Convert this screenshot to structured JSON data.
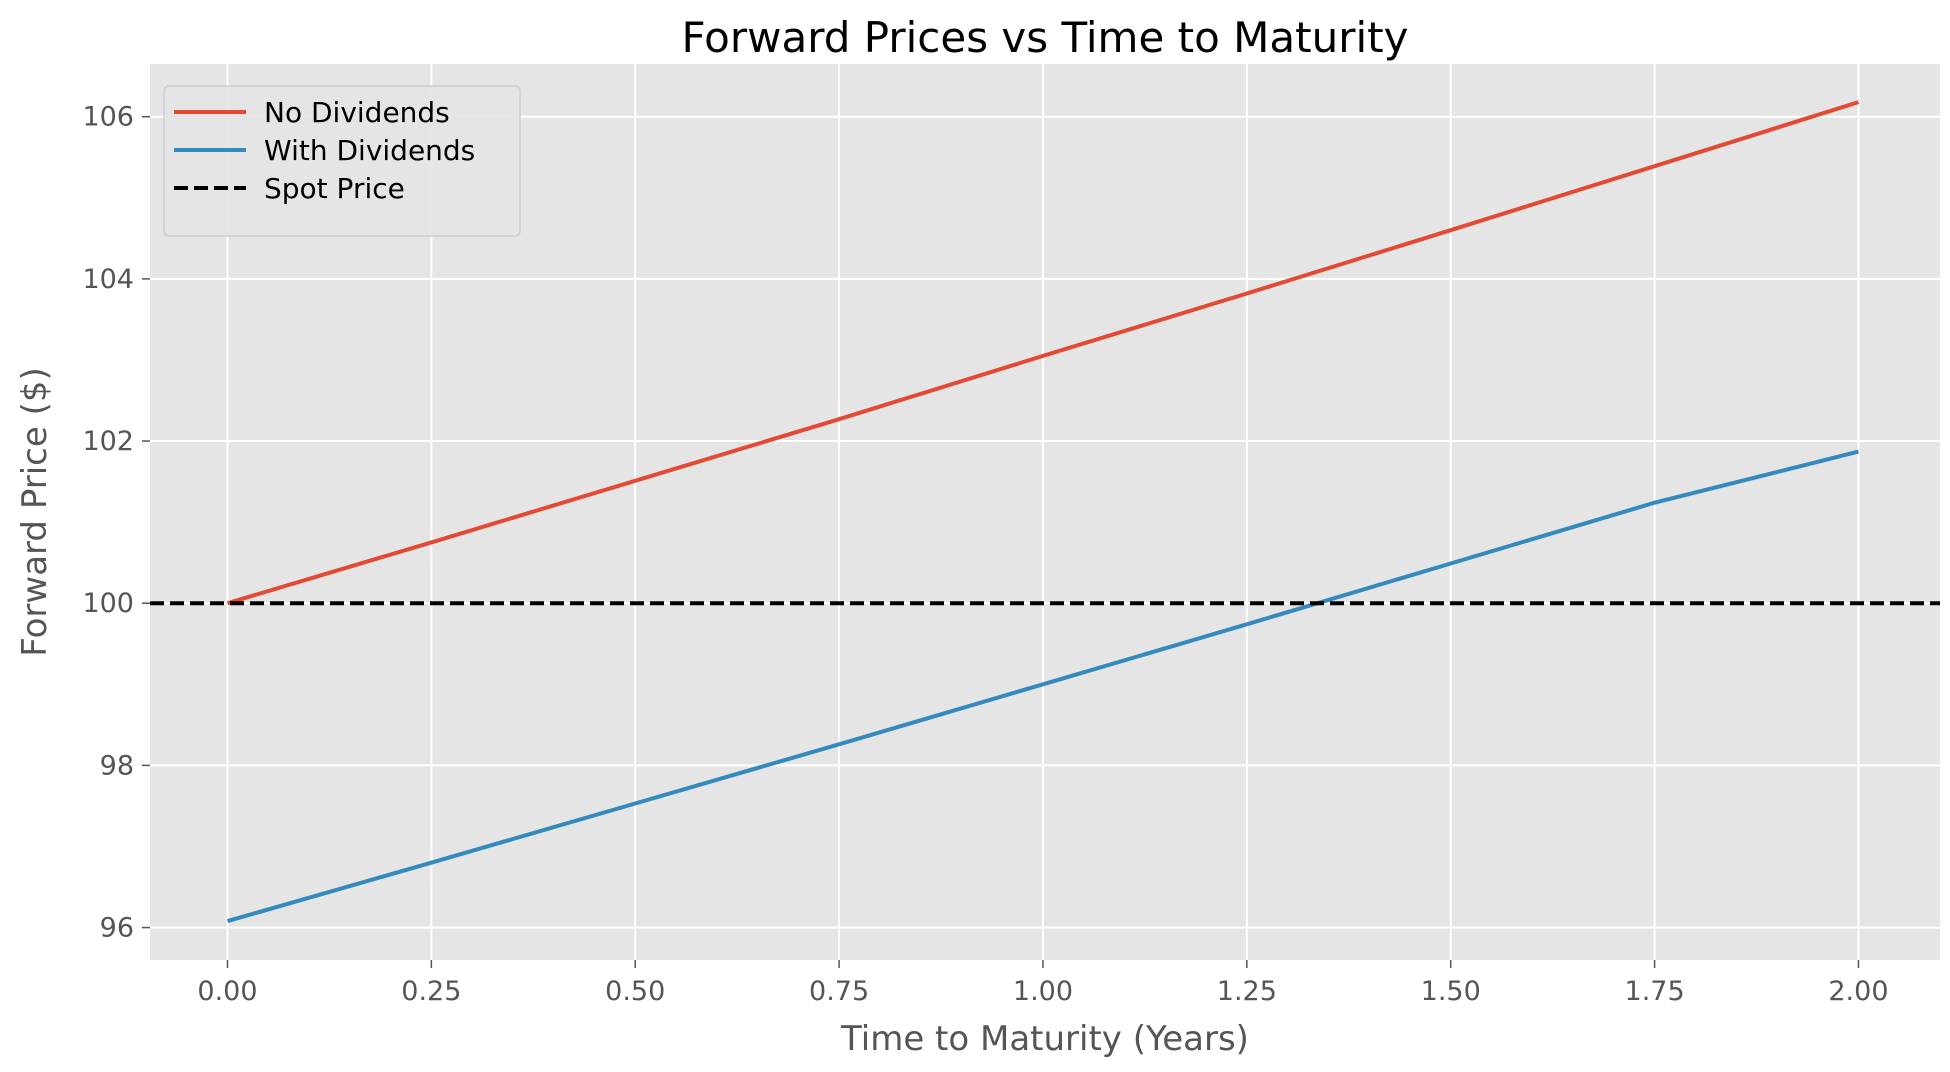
{
  "chart_data": {
    "type": "line",
    "title": "Forward Prices vs Time to Maturity",
    "xlabel": "Time to Maturity (Years)",
    "ylabel": "Forward Price ($)",
    "xlim": [
      -0.095,
      2.1
    ],
    "ylim": [
      95.6,
      106.65
    ],
    "x_ticks": [
      0,
      0.25,
      0.5,
      0.75,
      1.0,
      1.25,
      1.5,
      1.75,
      2.0
    ],
    "x_tick_labels": [
      "0.00",
      "0.25",
      "0.50",
      "0.75",
      "1.00",
      "1.25",
      "1.50",
      "1.75",
      "2.00"
    ],
    "y_ticks": [
      96,
      98,
      100,
      102,
      104,
      106
    ],
    "y_tick_labels": [
      "96",
      "98",
      "100",
      "102",
      "104",
      "106"
    ],
    "grid": true,
    "legend_position": "top-left",
    "series": [
      {
        "name": "No Dividends",
        "color": "#E24A33",
        "dash": "solid",
        "x": [
          0,
          0.25,
          0.5,
          0.75,
          1.0,
          1.25,
          1.5,
          1.75,
          2.0
        ],
        "y": [
          100.0,
          100.75,
          101.51,
          102.27,
          103.05,
          103.82,
          104.6,
          105.39,
          106.18
        ]
      },
      {
        "name": "With Dividends",
        "color": "#348ABD",
        "dash": "solid",
        "x": [
          0,
          0.25,
          0.5,
          0.75,
          1.0,
          1.25,
          1.5,
          1.75,
          2.0
        ],
        "y": [
          96.08,
          96.8,
          97.53,
          98.26,
          99.0,
          99.74,
          100.49,
          101.24,
          101.87
        ]
      },
      {
        "name": "Spot Price",
        "color": "#000000",
        "dash": "dashed",
        "x": [
          -0.095,
          2.1
        ],
        "y": [
          100,
          100
        ]
      }
    ]
  }
}
